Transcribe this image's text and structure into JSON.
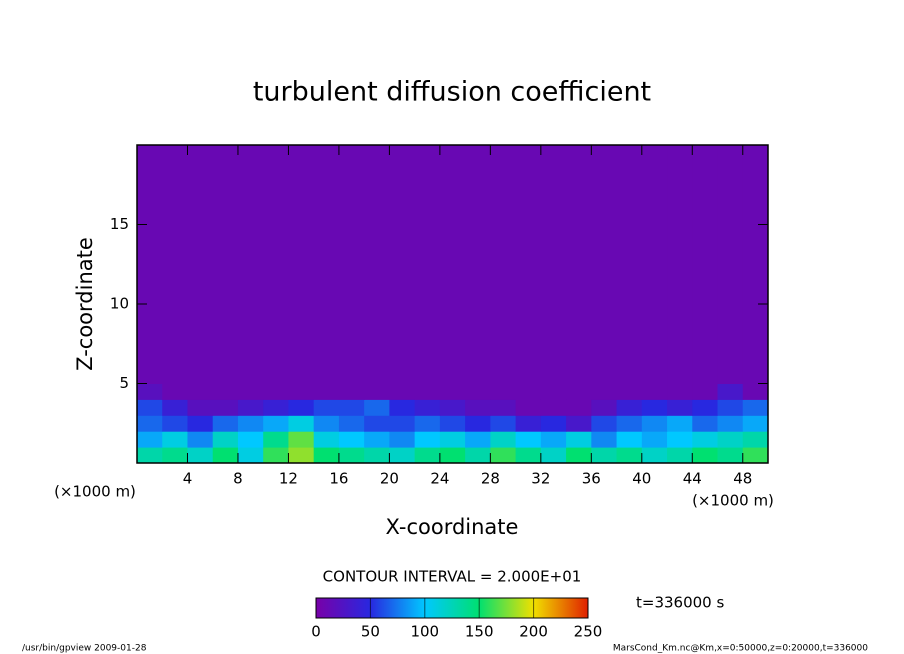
{
  "chart_data": {
    "type": "contour",
    "title": "turbulent diffusion coefficient",
    "x_label": "X-coordinate",
    "y_label": "Z-coordinate",
    "x_unit": "(×1000 m)",
    "xbins": [
      0,
      2,
      4,
      6,
      8,
      10,
      12,
      14,
      16,
      18,
      20,
      22,
      24,
      26,
      28,
      30,
      32,
      34,
      36,
      38,
      40,
      42,
      44,
      46,
      48,
      50
    ],
    "ybins": [
      0,
      1,
      2,
      3,
      4,
      5,
      20
    ],
    "values": [
      [
        130,
        140,
        120,
        150,
        110,
        160,
        180,
        150,
        140,
        130,
        120,
        140,
        150,
        130,
        160,
        140,
        120,
        150,
        130,
        140,
        120,
        130,
        150,
        140,
        160
      ],
      [
        90,
        110,
        80,
        120,
        100,
        140,
        170,
        110,
        100,
        90,
        80,
        100,
        110,
        90,
        120,
        100,
        90,
        110,
        80,
        100,
        90,
        100,
        110,
        120,
        130
      ],
      [
        70,
        60,
        50,
        70,
        80,
        90,
        110,
        80,
        70,
        60,
        60,
        70,
        60,
        50,
        60,
        40,
        50,
        30,
        60,
        70,
        80,
        90,
        70,
        80,
        90
      ],
      [
        60,
        40,
        20,
        20,
        30,
        40,
        50,
        60,
        60,
        70,
        50,
        40,
        30,
        20,
        20,
        10,
        10,
        10,
        20,
        40,
        50,
        40,
        50,
        60,
        70
      ],
      [
        20,
        10,
        10,
        10,
        10,
        10,
        10,
        10,
        10,
        10,
        10,
        10,
        10,
        10,
        10,
        10,
        10,
        10,
        10,
        10,
        10,
        10,
        10,
        30,
        10
      ],
      [
        10,
        10,
        10,
        10,
        10,
        10,
        10,
        10,
        10,
        10,
        10,
        10,
        10,
        10,
        10,
        10,
        10,
        10,
        10,
        10,
        10,
        10,
        10,
        10,
        10
      ]
    ],
    "xlim": [
      0,
      50
    ],
    "ylim": [
      0,
      20
    ],
    "xticks": [
      4,
      8,
      12,
      16,
      20,
      24,
      28,
      32,
      36,
      40,
      44,
      48
    ],
    "yticks": [
      5,
      10,
      15
    ],
    "clim": [
      0,
      250
    ],
    "colormap": [
      "#7800a8",
      "#2828e0",
      "#00c8ff",
      "#00e070",
      "#f0e000",
      "#e02000"
    ],
    "contour_interval_label": "CONTOUR INTERVAL = 2.000E+01",
    "colorbar_ticks": [
      0,
      50,
      100,
      150,
      200,
      250
    ],
    "time_label": "t=336000 s",
    "footer_left": "/usr/bin/gpview  2009-01-28",
    "footer_right": "MarsCond_Km.nc@Km,x=0:50000,z=0:20000,t=336000"
  }
}
